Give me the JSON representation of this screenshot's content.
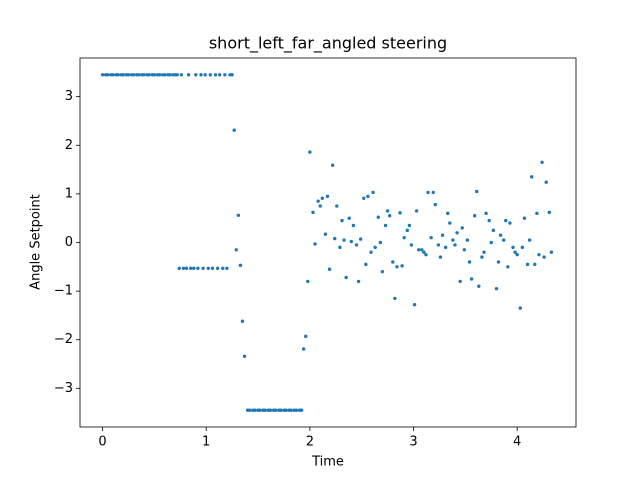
{
  "chart_data": {
    "type": "scatter",
    "title": "short_left_far_angled steering",
    "xlabel": "Time",
    "ylabel": "Angle Setpoint",
    "color": "#1f77b4",
    "x": [
      0.0,
      0.03,
      0.05,
      0.08,
      0.1,
      0.13,
      0.15,
      0.18,
      0.2,
      0.23,
      0.25,
      0.28,
      0.3,
      0.33,
      0.35,
      0.38,
      0.4,
      0.43,
      0.45,
      0.48,
      0.5,
      0.53,
      0.55,
      0.58,
      0.6,
      0.63,
      0.65,
      0.68,
      0.7,
      0.72,
      0.74,
      0.76,
      0.78,
      0.81,
      0.83,
      0.85,
      0.88,
      0.9,
      0.92,
      0.95,
      0.97,
      0.99,
      1.02,
      1.04,
      1.06,
      1.09,
      1.11,
      1.13,
      1.16,
      1.18,
      1.2,
      1.23,
      1.25,
      1.27,
      1.29,
      1.31,
      1.33,
      1.35,
      1.37,
      1.4,
      1.42,
      1.45,
      1.47,
      1.5,
      1.52,
      1.55,
      1.57,
      1.6,
      1.62,
      1.65,
      1.67,
      1.7,
      1.72,
      1.75,
      1.77,
      1.8,
      1.82,
      1.85,
      1.87,
      1.9,
      1.92,
      1.94,
      1.96,
      1.98,
      2.0,
      2.03,
      2.05,
      2.08,
      2.1,
      2.12,
      2.15,
      2.17,
      2.19,
      2.22,
      2.24,
      2.26,
      2.29,
      2.31,
      2.33,
      2.35,
      2.38,
      2.4,
      2.42,
      2.45,
      2.47,
      2.49,
      2.52,
      2.54,
      2.56,
      2.59,
      2.61,
      2.63,
      2.66,
      2.68,
      2.7,
      2.73,
      2.75,
      2.77,
      2.8,
      2.82,
      2.84,
      2.87,
      2.89,
      2.91,
      2.94,
      2.96,
      2.98,
      3.01,
      3.03,
      3.05,
      3.08,
      3.1,
      3.12,
      3.14,
      3.17,
      3.19,
      3.21,
      3.24,
      3.26,
      3.28,
      3.31,
      3.33,
      3.35,
      3.38,
      3.4,
      3.42,
      3.45,
      3.47,
      3.49,
      3.52,
      3.54,
      3.56,
      3.59,
      3.61,
      3.63,
      3.66,
      3.68,
      3.7,
      3.73,
      3.75,
      3.77,
      3.8,
      3.82,
      3.84,
      3.87,
      3.89,
      3.91,
      3.93,
      3.96,
      3.98,
      4.0,
      4.03,
      4.05,
      4.07,
      4.1,
      4.12,
      4.14,
      4.17,
      4.19,
      4.21,
      4.24,
      4.26,
      4.28,
      4.31,
      4.33
    ],
    "values": [
      3.45,
      3.45,
      3.45,
      3.45,
      3.45,
      3.45,
      3.45,
      3.45,
      3.45,
      3.45,
      3.45,
      3.45,
      3.45,
      3.45,
      3.45,
      3.45,
      3.45,
      3.45,
      3.45,
      3.45,
      3.45,
      3.45,
      3.45,
      3.45,
      3.45,
      3.45,
      3.45,
      3.45,
      3.45,
      3.45,
      -0.53,
      3.45,
      -0.53,
      -0.53,
      3.45,
      -0.53,
      -0.53,
      3.45,
      -0.53,
      3.45,
      -0.53,
      3.45,
      -0.53,
      3.45,
      -0.53,
      3.45,
      -0.53,
      3.45,
      -0.53,
      3.45,
      -0.53,
      3.45,
      3.45,
      2.31,
      -0.15,
      0.56,
      -0.47,
      -1.62,
      -2.34,
      -3.45,
      -3.45,
      -3.45,
      -3.45,
      -3.45,
      -3.45,
      -3.45,
      -3.45,
      -3.45,
      -3.45,
      -3.45,
      -3.45,
      -3.45,
      -3.45,
      -3.45,
      -3.45,
      -3.45,
      -3.45,
      -3.45,
      -3.45,
      -3.45,
      -3.45,
      -2.19,
      -1.93,
      -0.8,
      1.86,
      0.62,
      -0.03,
      0.85,
      0.75,
      0.91,
      0.17,
      0.95,
      -0.55,
      1.59,
      0.08,
      0.75,
      -0.1,
      0.45,
      0.05,
      -0.72,
      0.5,
      0.02,
      0.35,
      -0.05,
      -0.8,
      0.07,
      0.91,
      -0.45,
      0.95,
      -0.2,
      1.03,
      -0.1,
      0.52,
      0.0,
      -0.6,
      0.35,
      0.65,
      0.55,
      -0.4,
      -1.15,
      -0.5,
      0.61,
      -0.48,
      0.1,
      0.25,
      0.35,
      -0.05,
      -1.28,
      0.65,
      -0.15,
      -0.15,
      -0.2,
      -0.25,
      1.03,
      0.1,
      1.03,
      0.78,
      -0.05,
      -0.3,
      0.15,
      -0.1,
      0.6,
      0.4,
      0.05,
      -0.05,
      0.2,
      -0.8,
      0.3,
      -0.15,
      0.05,
      -0.4,
      -0.75,
      0.55,
      1.05,
      -0.9,
      -0.3,
      -0.2,
      0.6,
      0.45,
      0.0,
      0.25,
      -0.95,
      -0.4,
      0.15,
      0.05,
      0.45,
      -0.5,
      0.4,
      -0.1,
      -0.2,
      -0.25,
      -1.35,
      -0.1,
      0.5,
      -0.45,
      0.05,
      1.35,
      -0.45,
      0.6,
      -0.25,
      1.65,
      -0.3,
      1.24,
      0.62,
      -0.2
    ],
    "xlim": [
      -0.2175,
      4.5675
    ],
    "ylim": [
      -3.795,
      3.795
    ],
    "xticks": [
      0,
      1,
      2,
      3,
      4
    ],
    "yticks": [
      {
        "value": -3,
        "label": "−3"
      },
      {
        "value": -2,
        "label": "−2"
      },
      {
        "value": -1,
        "label": "−1"
      },
      0,
      1,
      2,
      3
    ]
  }
}
